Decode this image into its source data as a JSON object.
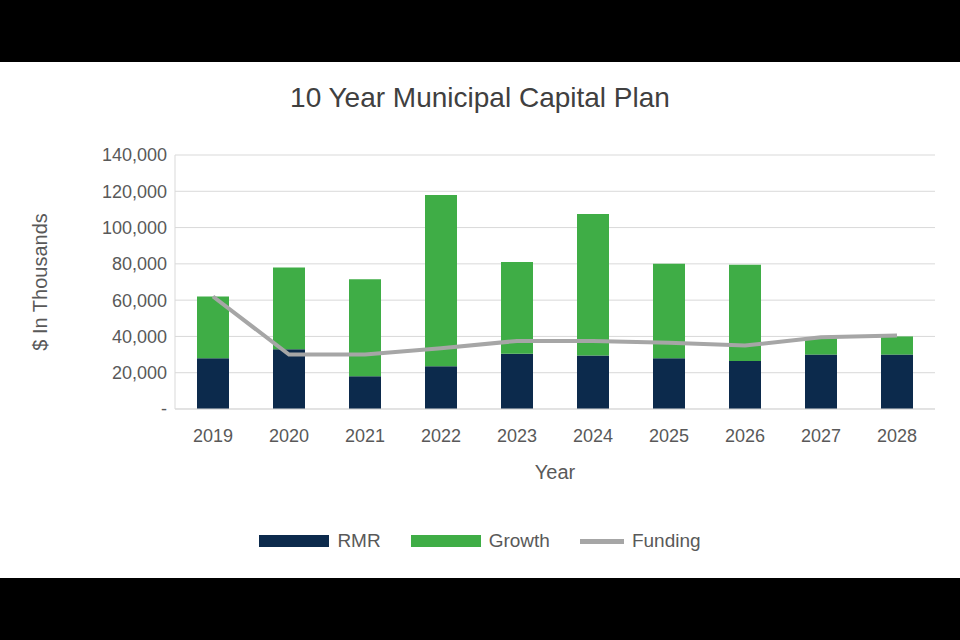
{
  "chart_data": {
    "type": "bar",
    "title": "10 Year Municipal Capital Plan",
    "x_label": "Year",
    "y_label": "$ In Thousands",
    "categories": [
      "2019",
      "2020",
      "2021",
      "2022",
      "2023",
      "2024",
      "2025",
      "2026",
      "2027",
      "2028"
    ],
    "series": [
      {
        "name": "RMR",
        "color": "#0c2a4c",
        "type": "bar",
        "values": [
          28000,
          33000,
          18000,
          23500,
          30500,
          29500,
          28000,
          26500,
          30000,
          30000
        ]
      },
      {
        "name": "Growth",
        "color": "#3fad46",
        "type": "bar",
        "values": [
          34000,
          45000,
          53500,
          94500,
          50500,
          78000,
          52000,
          53000,
          9000,
          10000
        ]
      },
      {
        "name": "Funding",
        "color": "#a6a6a6",
        "type": "line",
        "values": [
          62000,
          30000,
          30000,
          33500,
          37500,
          37500,
          36500,
          35000,
          39500,
          40500
        ]
      }
    ],
    "stacked": true,
    "ylim": [
      0,
      140000
    ],
    "yticks": [
      {
        "value": 0,
        "label": "-"
      },
      {
        "value": 20000,
        "label": "20,000"
      },
      {
        "value": 40000,
        "label": "40,000"
      },
      {
        "value": 60000,
        "label": "60,000"
      },
      {
        "value": 80000,
        "label": "80,000"
      },
      {
        "value": 100000,
        "label": "100,000"
      },
      {
        "value": 120000,
        "label": "120,000"
      },
      {
        "value": 140000,
        "label": "140,000"
      }
    ],
    "grid": true,
    "legend": "bottom"
  }
}
